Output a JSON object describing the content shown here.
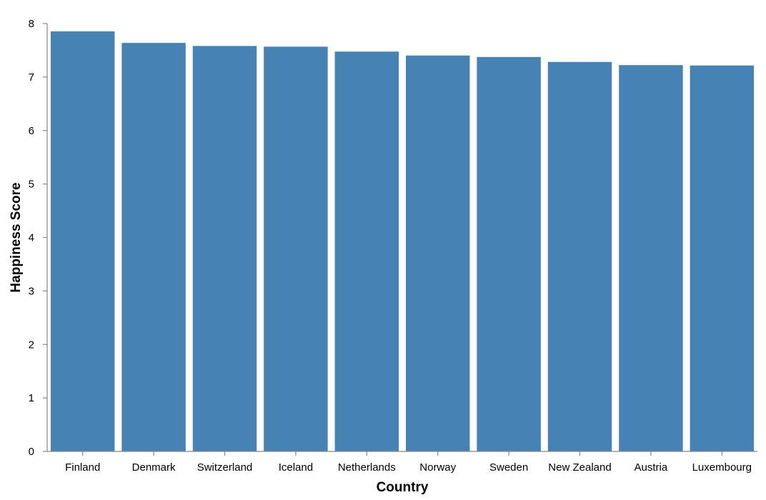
{
  "chart_data": {
    "type": "bar",
    "title": "",
    "xlabel": "Country",
    "ylabel": "Happiness Score",
    "categories": [
      "Finland",
      "Denmark",
      "Switzerland",
      "Iceland",
      "Netherlands",
      "Norway",
      "Sweden",
      "New Zealand",
      "Austria",
      "Luxembourg"
    ],
    "values": [
      7.855,
      7.638,
      7.581,
      7.568,
      7.476,
      7.403,
      7.375,
      7.282,
      7.223,
      7.216
    ],
    "ylim": [
      0,
      8
    ],
    "yticks": [
      "0",
      "1",
      "2",
      "3",
      "4",
      "5",
      "6",
      "7",
      "8"
    ],
    "grid": false,
    "legend": "none",
    "bar_color": "#4682b4",
    "axis_color": "#888888"
  }
}
